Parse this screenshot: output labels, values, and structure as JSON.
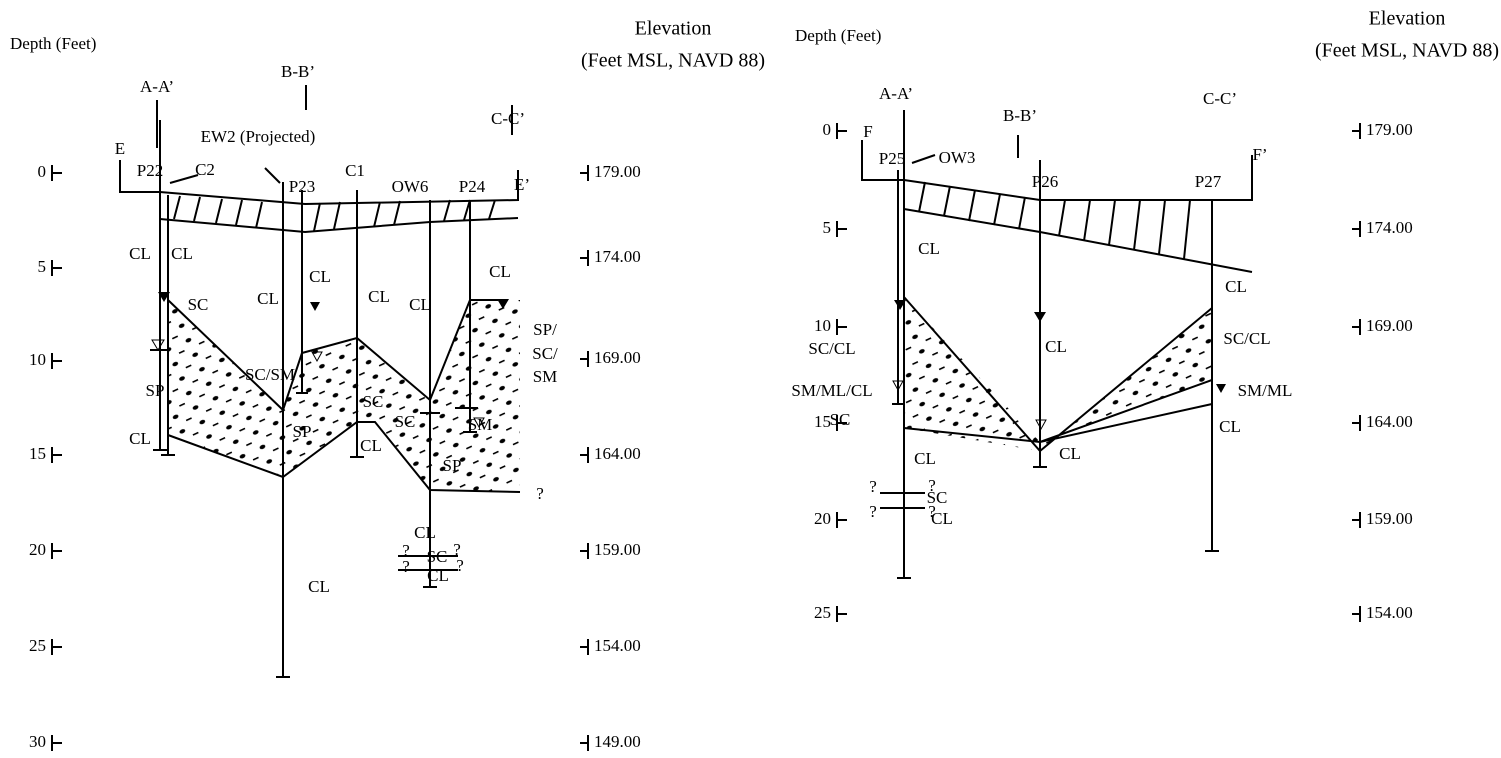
{
  "left": {
    "depth_title": "Depth (Feet)",
    "elevation_title": [
      "Elevation",
      "(Feet MSL, NAVD 88)"
    ],
    "depth_ticks": [
      "0",
      "5",
      "10",
      "15",
      "20",
      "25",
      "30"
    ],
    "elevation_ticks": [
      "179.00",
      "174.00",
      "169.00",
      "164.00",
      "159.00",
      "154.00",
      "149.00"
    ],
    "labels": [
      "A-A’",
      "B-B’",
      "C-C’",
      "E",
      "E’",
      "EW2 (Projected)",
      "P22",
      "C2",
      "P23",
      "C1",
      "OW6",
      "P24",
      "CL",
      "CL",
      "CL",
      "CL",
      "CL",
      "CL",
      "CL",
      "SC",
      "SP/",
      "SC/",
      "SM",
      "SC/SM",
      "SP",
      "SC",
      "SC",
      "SM",
      "SP",
      "SP",
      "CL",
      "CL",
      "?",
      "CL",
      "?",
      "SC",
      "?",
      "?",
      "CL",
      "?",
      "CL"
    ]
  },
  "right": {
    "depth_title": "Depth (Feet)",
    "elevation_title": [
      "Elevation",
      "(Feet MSL, NAVD 88)"
    ],
    "depth_ticks": [
      "0",
      "5",
      "10",
      "15",
      "20",
      "25"
    ],
    "elevation_ticks": [
      "179.00",
      "174.00",
      "169.00",
      "164.00",
      "159.00",
      "154.00"
    ],
    "labels": [
      "A-A’",
      "B-B’",
      "C-C’",
      "F",
      "F’",
      "P25",
      "OW3",
      "P26",
      "P27",
      "CL",
      "CL",
      "SC/CL",
      "CL",
      "SC/CL",
      "SM/ML/CL",
      "SM/ML",
      "SC",
      "CL",
      "CL",
      "CL",
      "?",
      "?",
      "SC",
      "?",
      "?",
      "CL"
    ]
  }
}
